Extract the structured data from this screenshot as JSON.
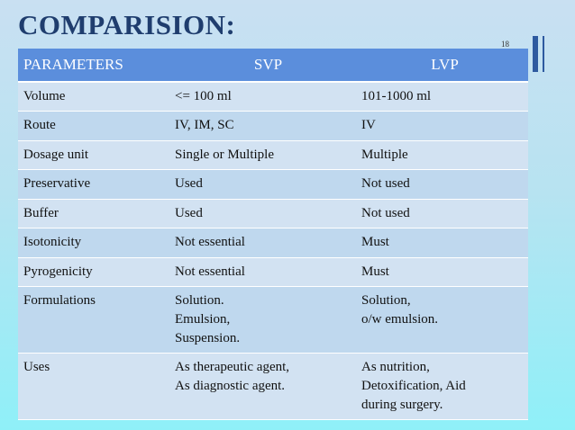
{
  "title": "COMPARISION:",
  "slide_number": "18",
  "table": {
    "headers": [
      "PARAMETERS",
      "SVP",
      "LVP"
    ],
    "rows": [
      {
        "param": [
          "Volume"
        ],
        "svp": [
          "<= 100 ml"
        ],
        "lvp": [
          "101-1000 ml"
        ]
      },
      {
        "param": [
          "Route"
        ],
        "svp": [
          "IV, IM, SC"
        ],
        "lvp": [
          "IV"
        ]
      },
      {
        "param": [
          "Dosage unit"
        ],
        "svp": [
          "Single or Multiple"
        ],
        "lvp": [
          "Multiple"
        ]
      },
      {
        "param": [
          "Preservative"
        ],
        "svp": [
          "Used"
        ],
        "lvp": [
          "Not used"
        ]
      },
      {
        "param": [
          "Buffer"
        ],
        "svp": [
          "Used"
        ],
        "lvp": [
          "Not used"
        ]
      },
      {
        "param": [
          "Isotonicity"
        ],
        "svp": [
          "Not essential"
        ],
        "lvp": [
          "Must"
        ]
      },
      {
        "param": [
          "Pyrogenicity"
        ],
        "svp": [
          "Not essential"
        ],
        "lvp": [
          "Must"
        ]
      },
      {
        "param": [
          "Formulations"
        ],
        "svp": [
          "Solution.",
          "Emulsion,",
          "Suspension."
        ],
        "lvp": [
          "Solution,",
          "o/w emulsion."
        ]
      },
      {
        "param": [
          "Uses"
        ],
        "svp": [
          "As therapeutic agent,",
          "As diagnostic agent."
        ],
        "lvp": [
          "As nutrition,",
          "Detoxification,  Aid",
          "during surgery."
        ]
      }
    ]
  }
}
